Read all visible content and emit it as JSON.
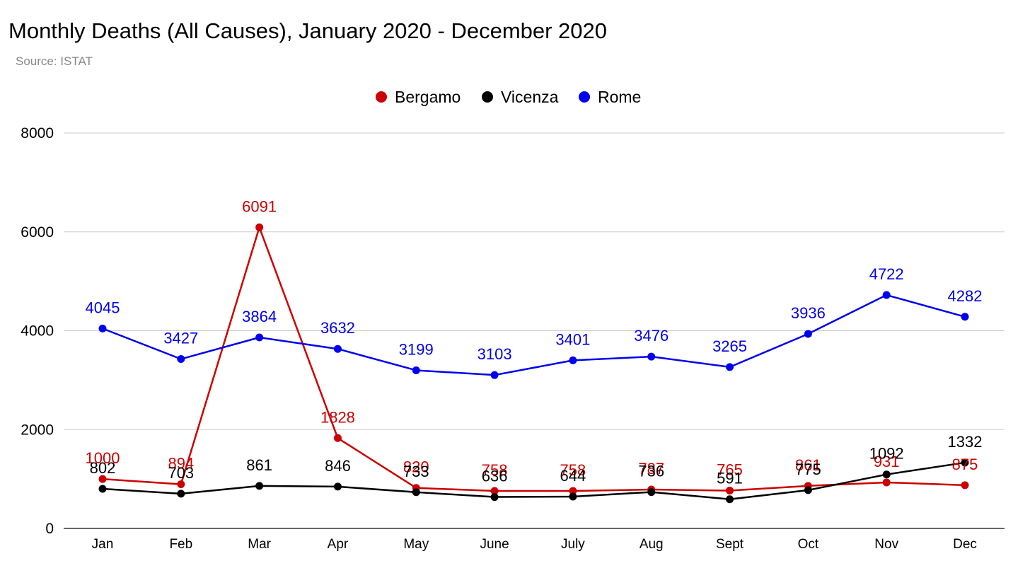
{
  "title": "Monthly Deaths (All Causes), January 2020 - December 2020",
  "subtitle": "Source: ISTAT",
  "chart_data": {
    "type": "line",
    "title": "Monthly Deaths (All Causes), January 2020 - December 2020",
    "subtitle": "Source: ISTAT",
    "categories": [
      "Jan",
      "Feb",
      "Mar",
      "Apr",
      "May",
      "June",
      "July",
      "Aug",
      "Sept",
      "Oct",
      "Nov",
      "Dec"
    ],
    "ylim": [
      0,
      8000
    ],
    "yticks": [
      0,
      2000,
      4000,
      6000,
      8000
    ],
    "grid": true,
    "legend_position": "top-center",
    "series": [
      {
        "name": "Bergamo",
        "color": "#cc0000",
        "values": [
          1000,
          894,
          6091,
          1828,
          820,
          758,
          758,
          787,
          765,
          861,
          931,
          875
        ]
      },
      {
        "name": "Vicenza",
        "color": "#000000",
        "values": [
          802,
          703,
          861,
          846,
          733,
          636,
          644,
          736,
          591,
          775,
          1092,
          1332
        ]
      },
      {
        "name": "Rome",
        "color": "#0000ee",
        "values": [
          4045,
          3427,
          3864,
          3632,
          3199,
          3103,
          3401,
          3476,
          3265,
          3936,
          4722,
          4282
        ]
      }
    ]
  }
}
